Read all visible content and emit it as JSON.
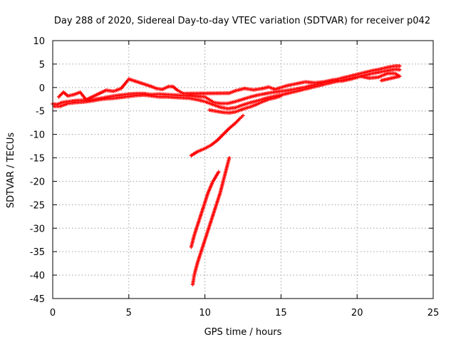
{
  "chart_data": {
    "type": "scatter",
    "title": "Day 288 of 2020, Sidereal Day-to-day VTEC variation (SDTVAR) for receiver p042",
    "xlabel": "GPS time / hours",
    "ylabel": "SDTVAR / TECUs",
    "xlim": [
      0,
      25
    ],
    "ylim": [
      -45,
      10
    ],
    "xticks": [
      0,
      5,
      10,
      15,
      20,
      25
    ],
    "yticks": [
      10,
      5,
      0,
      -5,
      -10,
      -15,
      -20,
      -25,
      -30,
      -35,
      -40,
      -45
    ],
    "grid": true,
    "marker": "plus",
    "color": "#ff0000",
    "series": [
      {
        "points": [
          [
            0.0,
            -3.5
          ],
          [
            0.3,
            -3.6
          ],
          [
            0.6,
            -3.2
          ],
          [
            1.0,
            -3.0
          ],
          [
            1.5,
            -2.8
          ],
          [
            2.0,
            -2.7
          ],
          [
            2.5,
            -2.7
          ],
          [
            3.0,
            -2.4
          ],
          [
            3.5,
            -2.1
          ],
          [
            4.0,
            -1.8
          ],
          [
            4.5,
            -1.6
          ],
          [
            5.0,
            -1.4
          ],
          [
            5.5,
            -1.3
          ],
          [
            6.0,
            -1.3
          ],
          [
            6.5,
            -1.5
          ],
          [
            7.0,
            -1.4
          ],
          [
            7.5,
            -1.5
          ],
          [
            8.0,
            -1.6
          ],
          [
            8.5,
            -1.7
          ],
          [
            9.0,
            -1.8
          ],
          [
            9.5,
            -1.9
          ],
          [
            10.0,
            -2.0
          ],
          [
            10.3,
            -2.6
          ],
          [
            10.6,
            -3.2
          ],
          [
            11.0,
            -3.4
          ],
          [
            11.5,
            -3.4
          ],
          [
            12.0,
            -3.0
          ],
          [
            12.5,
            -2.5
          ],
          [
            13.0,
            -2.0
          ],
          [
            13.5,
            -1.6
          ],
          [
            14.0,
            -1.3
          ],
          [
            14.5,
            -1.0
          ],
          [
            15.0,
            -0.8
          ],
          [
            15.5,
            -0.6
          ],
          [
            16.0,
            -0.3
          ],
          [
            16.5,
            0.0
          ],
          [
            17.0,
            0.4
          ],
          [
            17.5,
            0.8
          ],
          [
            18.0,
            1.2
          ],
          [
            18.5,
            1.6
          ],
          [
            19.0,
            2.0
          ],
          [
            19.5,
            2.4
          ],
          [
            20.0,
            2.8
          ],
          [
            20.5,
            3.2
          ],
          [
            21.0,
            3.6
          ],
          [
            21.5,
            3.9
          ],
          [
            22.0,
            4.3
          ],
          [
            22.5,
            4.6
          ],
          [
            22.8,
            4.6
          ]
        ]
      },
      {
        "points": [
          [
            0.1,
            -4.0
          ],
          [
            0.5,
            -4.0
          ],
          [
            1.0,
            -3.4
          ],
          [
            1.5,
            -3.2
          ],
          [
            2.0,
            -3.1
          ],
          [
            2.5,
            -2.9
          ],
          [
            3.0,
            -2.6
          ],
          [
            3.5,
            -2.4
          ],
          [
            4.0,
            -2.3
          ],
          [
            4.5,
            -2.1
          ],
          [
            5.0,
            -1.9
          ],
          [
            5.5,
            -1.7
          ],
          [
            6.0,
            -1.6
          ],
          [
            6.5,
            -1.8
          ],
          [
            7.0,
            -2.0
          ],
          [
            7.5,
            -2.0
          ],
          [
            8.0,
            -2.1
          ],
          [
            8.5,
            -2.2
          ],
          [
            9.0,
            -2.3
          ],
          [
            9.5,
            -2.6
          ],
          [
            10.0,
            -3.0
          ],
          [
            10.5,
            -3.6
          ],
          [
            11.0,
            -4.2
          ],
          [
            11.5,
            -4.5
          ],
          [
            12.0,
            -4.3
          ],
          [
            12.5,
            -3.7
          ],
          [
            13.0,
            -3.2
          ],
          [
            13.5,
            -2.8
          ],
          [
            14.0,
            -2.3
          ],
          [
            14.5,
            -1.9
          ],
          [
            15.0,
            -1.6
          ],
          [
            15.5,
            -1.2
          ],
          [
            16.0,
            -0.8
          ],
          [
            16.5,
            -0.4
          ],
          [
            17.0,
            0.0
          ],
          [
            17.5,
            0.4
          ],
          [
            18.0,
            0.8
          ],
          [
            18.5,
            1.2
          ],
          [
            19.0,
            1.5
          ],
          [
            19.5,
            1.9
          ],
          [
            20.0,
            2.2
          ],
          [
            20.5,
            2.6
          ],
          [
            21.0,
            3.0
          ],
          [
            21.5,
            3.3
          ],
          [
            22.0,
            3.6
          ],
          [
            22.5,
            3.9
          ],
          [
            22.8,
            3.8
          ]
        ]
      },
      {
        "points": [
          [
            0.4,
            -2.0
          ],
          [
            0.7,
            -1.0
          ],
          [
            1.0,
            -1.8
          ],
          [
            1.4,
            -1.5
          ],
          [
            1.8,
            -1.0
          ],
          [
            2.2,
            -2.6
          ],
          [
            3.5,
            -0.6
          ],
          [
            4.0,
            -0.8
          ],
          [
            4.5,
            -0.2
          ],
          [
            4.8,
            1.0
          ],
          [
            5.0,
            1.8
          ],
          [
            6.5,
            0.2
          ],
          [
            6.8,
            -0.2
          ],
          [
            7.2,
            -0.4
          ],
          [
            7.6,
            0.2
          ],
          [
            7.9,
            0.2
          ],
          [
            8.2,
            -0.6
          ],
          [
            8.6,
            -1.3
          ],
          [
            11.6,
            -1.2
          ],
          [
            12.0,
            -0.7
          ],
          [
            12.6,
            -0.2
          ],
          [
            13.2,
            -0.5
          ],
          [
            13.8,
            -0.2
          ],
          [
            14.2,
            0.1
          ],
          [
            14.6,
            -0.4
          ],
          [
            15.4,
            0.4
          ],
          [
            16.0,
            0.8
          ],
          [
            16.6,
            1.2
          ],
          [
            17.2,
            1.0
          ],
          [
            17.8,
            1.2
          ],
          [
            18.4,
            1.6
          ],
          [
            19.0,
            1.4
          ],
          [
            19.6,
            1.8
          ],
          [
            20.2,
            2.4
          ],
          [
            20.8,
            2.0
          ],
          [
            21.4,
            2.2
          ],
          [
            22.0,
            3.0
          ],
          [
            22.5,
            3.0
          ],
          [
            22.8,
            2.4
          ],
          [
            21.6,
            1.5
          ]
        ]
      },
      {
        "points": [
          [
            10.3,
            -4.8
          ],
          [
            10.8,
            -5.1
          ],
          [
            11.2,
            -5.3
          ],
          [
            11.6,
            -5.4
          ],
          [
            12.0,
            -5.2
          ],
          [
            12.5,
            -4.6
          ],
          [
            13.0,
            -4.1
          ],
          [
            13.4,
            -3.6
          ],
          [
            13.8,
            -3.0
          ],
          [
            14.2,
            -2.5
          ],
          [
            14.6,
            -2.2
          ],
          [
            15.0,
            -1.8
          ]
        ]
      },
      {
        "points": [
          [
            9.1,
            -14.5
          ],
          [
            9.5,
            -13.7
          ],
          [
            10.0,
            -13.0
          ],
          [
            10.4,
            -12.3
          ],
          [
            10.8,
            -11.3
          ],
          [
            11.2,
            -10.0
          ],
          [
            11.6,
            -8.7
          ],
          [
            12.0,
            -7.6
          ],
          [
            12.3,
            -6.6
          ],
          [
            12.5,
            -6.0
          ]
        ]
      },
      {
        "points": [
          [
            9.1,
            -34.0
          ],
          [
            9.3,
            -31.5
          ],
          [
            9.6,
            -28.5
          ],
          [
            9.9,
            -25.5
          ],
          [
            10.2,
            -22.5
          ],
          [
            10.5,
            -20.2
          ],
          [
            10.9,
            -18.0
          ]
        ]
      },
      {
        "points": [
          [
            9.2,
            -42.0
          ],
          [
            9.3,
            -40.0
          ],
          [
            9.5,
            -37.5
          ],
          [
            9.8,
            -34.5
          ],
          [
            10.1,
            -31.5
          ],
          [
            10.4,
            -28.5
          ],
          [
            10.7,
            -25.5
          ],
          [
            11.0,
            -22.5
          ],
          [
            11.2,
            -20.0
          ],
          [
            11.4,
            -17.5
          ],
          [
            11.6,
            -15.0
          ]
        ]
      }
    ]
  }
}
